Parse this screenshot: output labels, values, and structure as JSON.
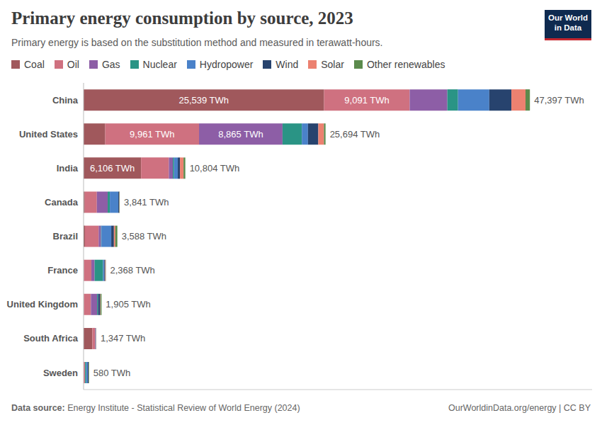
{
  "chart_data": {
    "type": "bar",
    "title": "Primary energy consumption by source, 2023",
    "subtitle": "Primary energy is based on the substitution method and measured in terawatt-hours.",
    "logo": "Our World in Data",
    "source_label": "Data source:",
    "source": "Energy Institute - Statistical Review of World Energy (2024)",
    "credit": "OurWorldinData.org/energy | CC BY",
    "orientation": "horizontal",
    "stacked": true,
    "data_labels": true,
    "legend": "top",
    "tick_labels": "y",
    "grid": false,
    "xlim": [
      0,
      54000
    ],
    "categories": [
      "China",
      "United States",
      "India",
      "Canada",
      "Brazil",
      "France",
      "United Kingdom",
      "South Africa",
      "Sweden"
    ],
    "totals": [
      47397,
      25694,
      10804,
      3841,
      3588,
      2368,
      1905,
      1347,
      580
    ],
    "total_labels": [
      "47,397 TWh",
      "25,694 TWh",
      "10,804 TWh",
      "3,841 TWh",
      "3,588 TWh",
      "2,368 TWh",
      "1,905 TWh",
      "1,347 TWh",
      "580 TWh"
    ],
    "series": [
      {
        "name": "Coal",
        "color": "#a0585c",
        "values": [
          25539,
          2300,
          6106,
          130,
          150,
          30,
          30,
          935,
          8
        ],
        "value_labels": [
          "25,539 TWh",
          null,
          "6,106 TWh",
          null,
          null,
          null,
          null,
          null,
          null
        ]
      },
      {
        "name": "Oil",
        "color": "#cf7180",
        "values": [
          9091,
          9961,
          2950,
          1280,
          1450,
          800,
          750,
          290,
          140
        ],
        "value_labels": [
          "9,091 TWh",
          "9,961 TWh",
          null,
          null,
          null,
          null,
          null,
          null,
          null
        ]
      },
      {
        "name": "Gas",
        "color": "#8d5ea6",
        "values": [
          4000,
          8865,
          420,
          1150,
          250,
          340,
          650,
          50,
          6
        ],
        "value_labels": [
          null,
          "8,865 TWh",
          null,
          null,
          null,
          null,
          null,
          null,
          null
        ]
      },
      {
        "name": "Nuclear",
        "color": "#2a9485",
        "values": [
          1130,
          2050,
          130,
          230,
          40,
          900,
          100,
          20,
          125
        ]
      },
      {
        "name": "Hydropower",
        "color": "#4a82c9",
        "values": [
          3320,
          650,
          400,
          900,
          1050,
          130,
          15,
          2,
          170
        ]
      },
      {
        "name": "Wind",
        "color": "#27436e",
        "values": [
          2350,
          1100,
          230,
          100,
          280,
          100,
          220,
          25,
          75
        ]
      },
      {
        "name": "Solar",
        "color": "#ec8170",
        "values": [
          1500,
          600,
          380,
          20,
          150,
          45,
          35,
          20,
          8
        ]
      },
      {
        "name": "Other renewables",
        "color": "#5b8a4c",
        "values": [
          467,
          168,
          188,
          31,
          218,
          23,
          105,
          5,
          48
        ]
      }
    ]
  }
}
